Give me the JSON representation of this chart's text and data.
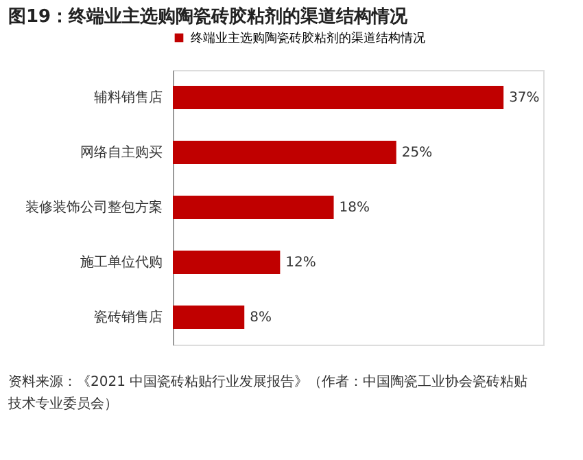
{
  "chart_data": {
    "type": "bar",
    "orientation": "horizontal",
    "title": "图19：终端业主选购陶瓷砖胶粘剂的渠道结构情况",
    "categories": [
      "辅料销售店",
      "网络自主购买",
      "装修装饰公司整包方案",
      "施工单位代购",
      "瓷砖销售店"
    ],
    "series": [
      {
        "name": "终端业主选购陶瓷砖胶粘剂的渠道结构情况",
        "color": "#c00000",
        "values": [
          37,
          25,
          18,
          12,
          8
        ],
        "value_labels": [
          "37%",
          "25%",
          "18%",
          "12%",
          "8%"
        ]
      }
    ],
    "legend": "top",
    "annotations": [
      "资料来源：《2021 中国瓷砖粘贴行业发展报告》（作者：中国陶瓷工业协会瓷砖粘贴技术专业委员会）"
    ]
  }
}
